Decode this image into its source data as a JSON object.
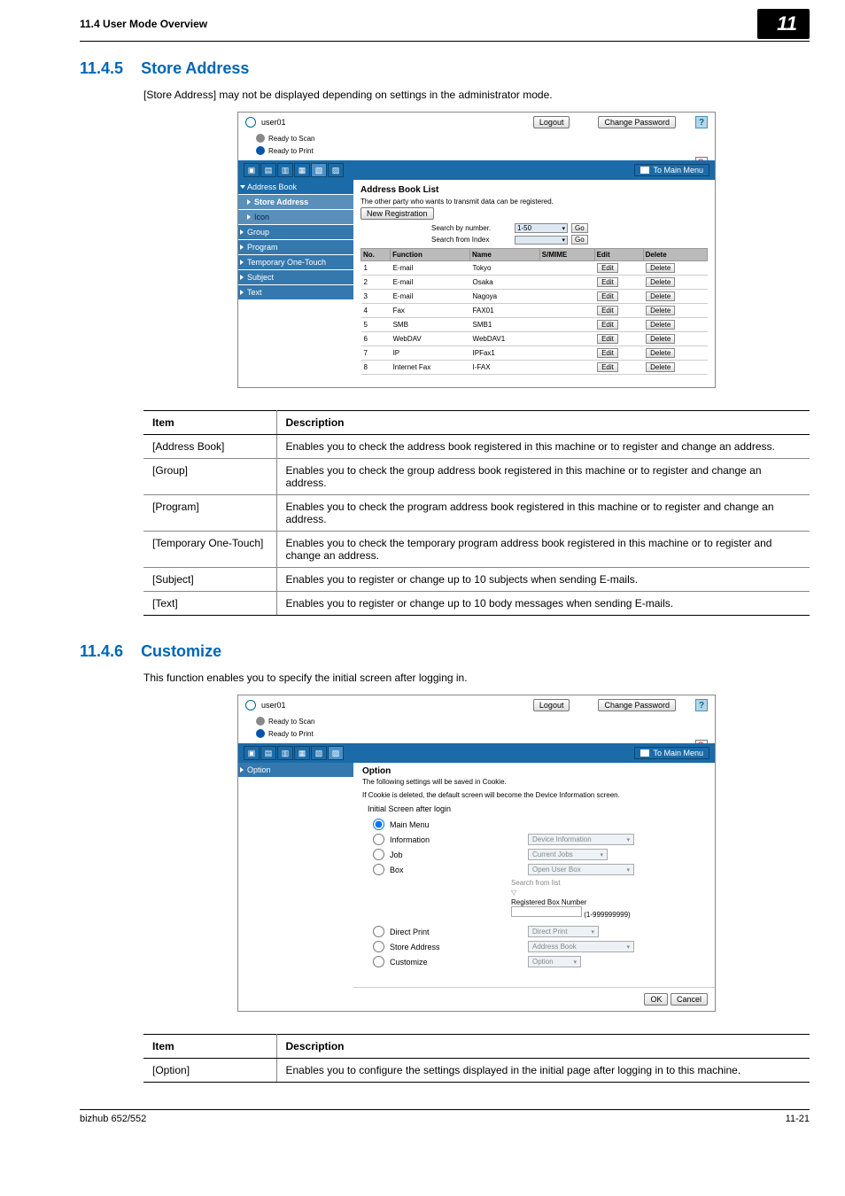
{
  "page": {
    "sectionHeader": "11.4    User Mode Overview",
    "badge": "11",
    "footerLeft": "bizhub 652/552",
    "footerRight": "11-21"
  },
  "sec1": {
    "num": "11.4.5",
    "title": "Store Address",
    "intro": "[Store Address] may not be displayed depending on settings in the administrator mode."
  },
  "shot1": {
    "user": "user01",
    "logout": "Logout",
    "changePwd": "Change Password",
    "readyScan": "Ready to Scan",
    "readyPrint": "Ready to Print",
    "toMain": "To Main Menu",
    "sidebar": {
      "addressBook": "Address Book",
      "storeAddress": "Store Address",
      "icon": "Icon",
      "group": "Group",
      "program": "Program",
      "tempOneTouch": "Temporary One-Touch",
      "subject": "Subject",
      "text": "Text"
    },
    "content": {
      "title": "Address Book List",
      "note": "The other party who wants to transmit data can be registered.",
      "newReg": "New Registration",
      "searchByNumber": "Search by number.",
      "searchFromIndex": "Search from Index",
      "range": "1-50",
      "go": "Go",
      "headers": {
        "no": "No.",
        "func": "Function",
        "name": "Name",
        "smime": "S/MIME",
        "edit": "Edit",
        "del": "Delete"
      },
      "rows": [
        {
          "no": "1",
          "func": "E-mail",
          "name": "Tokyo"
        },
        {
          "no": "2",
          "func": "E-mail",
          "name": "Osaka"
        },
        {
          "no": "3",
          "func": "E-mail",
          "name": "Nagoya"
        },
        {
          "no": "4",
          "func": "Fax",
          "name": "FAX01"
        },
        {
          "no": "5",
          "func": "SMB",
          "name": "SMB1"
        },
        {
          "no": "6",
          "func": "WebDAV",
          "name": "WebDAV1"
        },
        {
          "no": "7",
          "func": "IP",
          "name": "IPFax1"
        },
        {
          "no": "8",
          "func": "Internet Fax",
          "name": "I-FAX"
        }
      ],
      "editBtn": "Edit",
      "delBtn": "Delete"
    }
  },
  "table1": {
    "hItem": "Item",
    "hDesc": "Description",
    "rows": [
      {
        "item": "[Address Book]",
        "desc": "Enables you to check the address book registered in this machine or to register and change an address."
      },
      {
        "item": "[Group]",
        "desc": "Enables you to check the group address book registered in this machine or to register and change an address."
      },
      {
        "item": "[Program]",
        "desc": "Enables you to check the program address book registered in this machine or to register and change an address."
      },
      {
        "item": "[Temporary One-Touch]",
        "desc": "Enables you to check the temporary program address book registered in this machine or to register and change an address."
      },
      {
        "item": "[Subject]",
        "desc": "Enables you to register or change up to 10 subjects when sending E-mails."
      },
      {
        "item": "[Text]",
        "desc": "Enables you to register or change up to 10 body messages when sending E-mails."
      }
    ]
  },
  "sec2": {
    "num": "11.4.6",
    "title": "Customize",
    "intro": "This function enables you to specify the initial screen after logging in."
  },
  "shot2": {
    "sidebar": {
      "option": "Option"
    },
    "content": {
      "title": "Option",
      "note1": "The following settings will be saved in Cookie.",
      "note2": "If Cookie is deleted, the default screen will become the Device Information screen.",
      "heading": "Initial Screen after login",
      "opts": {
        "mainMenu": "Main Menu",
        "information": "Information",
        "job": "Job",
        "box": "Box",
        "directPrint": "Direct Print",
        "storeAddress": "Store Address",
        "customize": "Customize"
      },
      "boxes": {
        "devInfo": "Device Information",
        "currentJobs": "Current Jobs",
        "openUserBox": "Open User Box",
        "searchFromList": "Search from list",
        "directPrint": "Direct Print",
        "addressBook": "Address Book",
        "option": "Option"
      },
      "regBoxNum": "Registered Box Number",
      "regRange": "(1-999999999)",
      "ok": "OK",
      "cancel": "Cancel"
    }
  },
  "table2": {
    "hItem": "Item",
    "hDesc": "Description",
    "rows": [
      {
        "item": "[Option]",
        "desc": "Enables you to configure the settings displayed in the initial page after logging in to this machine."
      }
    ]
  }
}
